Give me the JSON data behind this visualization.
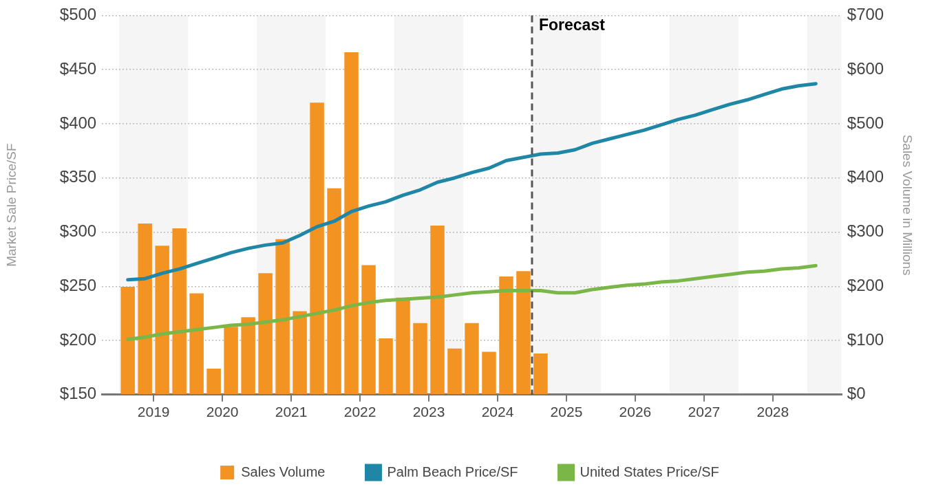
{
  "chart_data": {
    "type": "bar",
    "ylabel": "Market Sale Price/SF",
    "y2label": "Sales Volume in Millions",
    "x": [
      2019.125,
      2019.375,
      2019.625,
      2019.875,
      2020.125,
      2020.375,
      2020.625,
      2020.875,
      2021.125,
      2021.375,
      2021.625,
      2021.875,
      2022.125,
      2022.375,
      2022.625,
      2022.875,
      2023.125,
      2023.375,
      2023.625,
      2023.875,
      2024.125,
      2024.375,
      2024.625,
      2024.875,
      2025.125,
      2025.375,
      2025.625,
      2025.875,
      2026.125,
      2026.375,
      2026.625,
      2026.875,
      2027.125,
      2027.375,
      2027.625,
      2027.875,
      2028.125,
      2028.375,
      2028.625,
      2028.875,
      2029.125
    ],
    "xlim": [
      2018.75,
      2029.5
    ],
    "xticks": [
      {
        "value": 2019.5,
        "label": "2019"
      },
      {
        "value": 2020.5,
        "label": "2020"
      },
      {
        "value": 2021.5,
        "label": "2021"
      },
      {
        "value": 2022.5,
        "label": "2022"
      },
      {
        "value": 2023.5,
        "label": "2023"
      },
      {
        "value": 2024.5,
        "label": "2024"
      },
      {
        "value": 2025.5,
        "label": "2025"
      },
      {
        "value": 2026.5,
        "label": "2026"
      },
      {
        "value": 2027.5,
        "label": "2027"
      },
      {
        "value": 2028.5,
        "label": "2028"
      }
    ],
    "ylim": [
      150,
      500
    ],
    "yticks": [
      {
        "value": 150,
        "label": "$150"
      },
      {
        "value": 200,
        "label": "$200"
      },
      {
        "value": 250,
        "label": "$250"
      },
      {
        "value": 300,
        "label": "$300"
      },
      {
        "value": 350,
        "label": "$350"
      },
      {
        "value": 400,
        "label": "$400"
      },
      {
        "value": 450,
        "label": "$450"
      },
      {
        "value": 500,
        "label": "$500"
      }
    ],
    "y2lim": [
      0,
      700
    ],
    "y2ticks": [
      {
        "value": 0,
        "label": "$0"
      },
      {
        "value": 100,
        "label": "$100"
      },
      {
        "value": 200,
        "label": "$200"
      },
      {
        "value": 300,
        "label": "$300"
      },
      {
        "value": 400,
        "label": "$400"
      },
      {
        "value": 500,
        "label": "$500"
      },
      {
        "value": 600,
        "label": "$600"
      },
      {
        "value": 700,
        "label": "$700"
      }
    ],
    "series": [
      {
        "name": "Sales Volume",
        "axis": "y2",
        "color": "#f39322",
        "values": [
          199,
          316,
          275,
          307,
          187,
          48,
          125,
          143,
          224,
          287,
          154,
          539,
          381,
          632,
          239,
          104,
          179,
          132,
          312,
          85,
          132,
          79,
          218,
          228,
          76,
          null,
          null,
          null,
          null,
          null,
          null,
          null,
          null,
          null,
          null,
          null,
          null,
          null,
          null,
          null,
          null
        ]
      },
      {
        "name": "Palm Beach Price/SF",
        "type": "line",
        "color": "#1f87a5",
        "values": [
          256,
          257,
          262,
          266,
          271,
          276,
          281,
          285,
          288,
          290,
          297,
          305,
          310,
          319,
          324,
          328,
          334,
          339,
          346,
          350,
          355,
          359,
          366,
          369,
          372,
          373,
          376,
          382,
          386,
          390,
          394,
          399,
          404,
          408,
          413,
          418,
          422,
          427,
          432,
          435,
          437
        ]
      },
      {
        "name": "United States Price/SF",
        "type": "line",
        "color": "#7ab648",
        "values": [
          201,
          203,
          206,
          208,
          210,
          212,
          214,
          215,
          217,
          219,
          222,
          225,
          228,
          232,
          235,
          237,
          238,
          239,
          240,
          242,
          244,
          245,
          246,
          246,
          246,
          244,
          244,
          247,
          249,
          251,
          252,
          254,
          255,
          257,
          259,
          261,
          263,
          264,
          266,
          267,
          269
        ]
      }
    ],
    "bands": [
      {
        "axis": "x",
        "from": 2019,
        "to": 2020,
        "color": "#f5f5f5"
      },
      {
        "axis": "x",
        "from": 2021,
        "to": 2022,
        "color": "#f5f5f5"
      },
      {
        "axis": "x",
        "from": 2023,
        "to": 2024,
        "color": "#f5f5f5"
      },
      {
        "axis": "x",
        "from": 2025,
        "to": 2026,
        "color": "#f5f5f5"
      },
      {
        "axis": "x",
        "from": 2027,
        "to": 2028,
        "color": "#f5f5f5"
      },
      {
        "axis": "x",
        "from": 2029,
        "to": 2029.5,
        "color": "#f5f5f5"
      }
    ],
    "ref_lines": [
      {
        "axis": "x",
        "value": 2025,
        "label": "Forecast",
        "color": "#555555",
        "line_style": "dashed"
      }
    ],
    "grid": "y",
    "legend": "bottom",
    "marker": "none",
    "line_style": "solid"
  }
}
